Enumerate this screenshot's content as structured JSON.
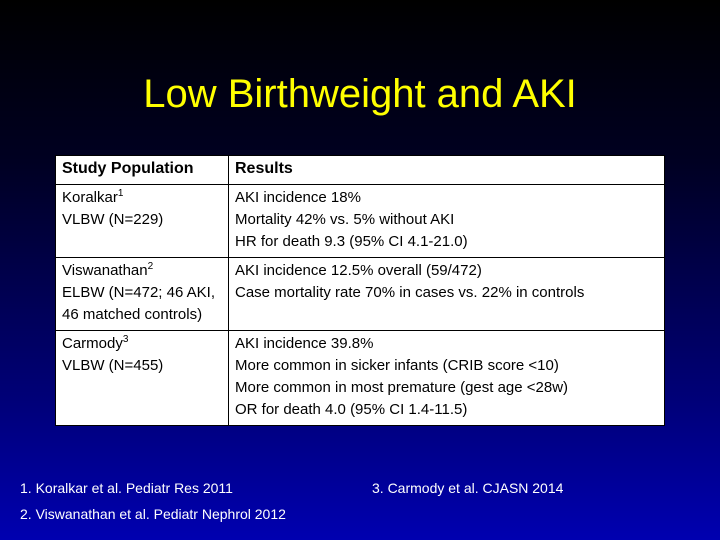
{
  "title": "Low Birthweight and AKI",
  "table": {
    "headers": [
      "Study Population",
      "Results"
    ],
    "rows": [
      {
        "author": "Koralkar",
        "ref": "1",
        "population_lines": [
          "VLBW (N=229)"
        ],
        "results": [
          "AKI incidence 18%",
          "Mortality 42% vs. 5% without AKI",
          "HR for death 9.3 (95% CI 4.1-21.0)"
        ]
      },
      {
        "author": "Viswanathan",
        "ref": "2",
        "population_lines": [
          "ELBW (N=472; 46 AKI, 46 matched controls)"
        ],
        "results": [
          "AKI incidence 12.5% overall (59/472)",
          "Case mortality rate 70% in cases vs. 22% in controls"
        ]
      },
      {
        "author": "Carmody",
        "ref": "3",
        "population_lines": [
          "VLBW (N=455)"
        ],
        "results": [
          "AKI incidence 39.8%",
          "More common in sicker infants (CRIB score <10)",
          "More common in most premature (gest age <28w)",
          "OR for death 4.0 (95% CI 1.4-11.5)"
        ]
      }
    ]
  },
  "references": [
    "1. Koralkar et al.  Pediatr Res 2011",
    "2. Viswanathan et al.  Pediatr Nephrol 2012",
    "3. Carmody et al.  CJASN 2014"
  ]
}
